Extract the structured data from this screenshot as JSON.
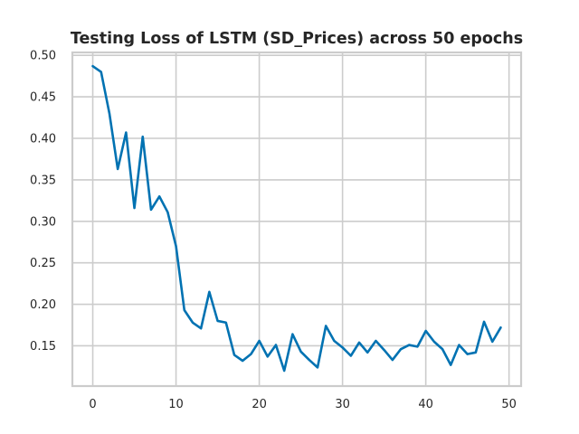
{
  "chart_data": {
    "type": "line",
    "title": "Testing Loss of LSTM (SD_Prices) across 50 epochs",
    "xlabel": "",
    "ylabel": "",
    "xlim": [
      -2.45,
      51.45
    ],
    "ylim": [
      0.1015,
      0.5035
    ],
    "x_ticks": [
      0,
      10,
      20,
      30,
      40,
      50
    ],
    "y_ticks": [
      0.15,
      0.2,
      0.25,
      0.3,
      0.35,
      0.4,
      0.45,
      0.5
    ],
    "grid": true,
    "legend": "none",
    "series": [
      {
        "color": "#0072b2",
        "x": [
          0,
          1,
          2,
          3,
          4,
          5,
          6,
          7,
          8,
          9,
          10,
          11,
          12,
          13,
          14,
          15,
          16,
          17,
          18,
          19,
          20,
          21,
          22,
          23,
          24,
          25,
          26,
          27,
          28,
          29,
          30,
          31,
          32,
          33,
          34,
          35,
          36,
          37,
          38,
          39,
          40,
          41,
          42,
          43,
          44,
          45,
          46,
          47,
          48,
          49
        ],
        "values": [
          0.487,
          0.48,
          0.43,
          0.363,
          0.407,
          0.316,
          0.402,
          0.314,
          0.33,
          0.311,
          0.27,
          0.193,
          0.178,
          0.171,
          0.215,
          0.18,
          0.178,
          0.139,
          0.132,
          0.14,
          0.156,
          0.137,
          0.151,
          0.12,
          0.164,
          0.143,
          0.133,
          0.124,
          0.174,
          0.156,
          0.148,
          0.138,
          0.154,
          0.142,
          0.156,
          0.145,
          0.133,
          0.146,
          0.151,
          0.149,
          0.168,
          0.155,
          0.146,
          0.127,
          0.151,
          0.14,
          0.142,
          0.179,
          0.155,
          0.172
        ]
      }
    ]
  }
}
